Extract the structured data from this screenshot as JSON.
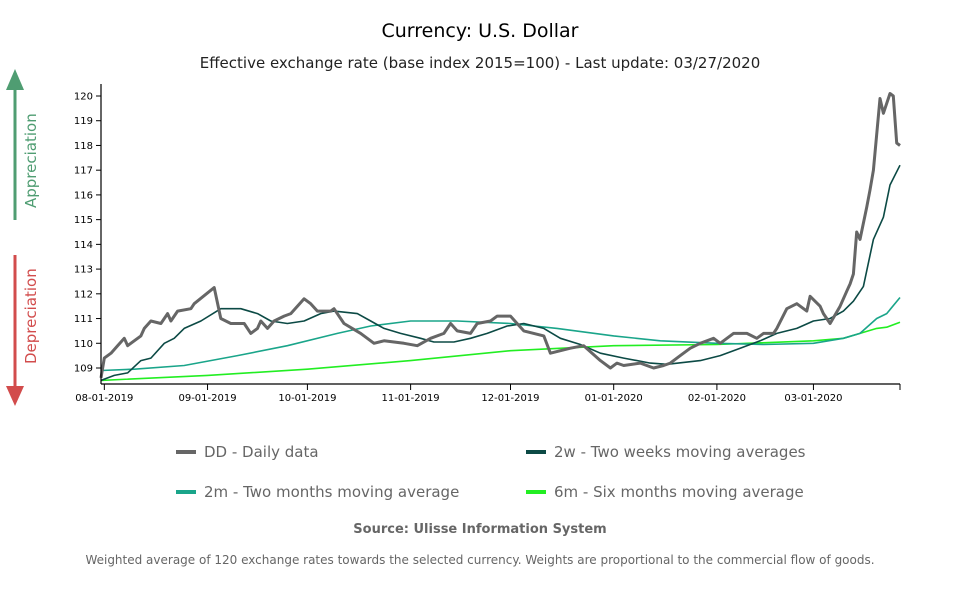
{
  "header": {
    "title": "Currency: U.S. Dollar",
    "subtitle": "Effective exchange rate (base index 2015=100) - Last update: 03/27/2020"
  },
  "side_labels": {
    "appreciation": "Appreciation",
    "depreciation": "Depreciation",
    "appreciation_color": "#4f9d72",
    "depreciation_color": "#d24c4c"
  },
  "legend": [
    {
      "label": "DD - Daily data",
      "color": "#666666"
    },
    {
      "label": "2w - Two weeks moving averages",
      "color": "#0c4a45"
    },
    {
      "label": "2m - Two months moving average",
      "color": "#1aa58a"
    },
    {
      "label": "6m - Six months moving average",
      "color": "#22ee22"
    }
  ],
  "footer": {
    "source": "Source: Ulisse Information System",
    "note": "Weighted average of 120 exchange rates towards the selected currency. Weights are proportional to the commercial flow of goods."
  },
  "chart_data": {
    "type": "line",
    "title": "Currency: U.S. Dollar",
    "subtitle": "Effective exchange rate (base index 2015=100) - Last update: 03/27/2020",
    "xlim": [
      "2019-07-31",
      "2020-03-27"
    ],
    "ylim": [
      108.3,
      120.4
    ],
    "x_ticks": [
      "08-01-2019",
      "09-01-2019",
      "10-01-2019",
      "11-01-2019",
      "12-01-2019",
      "01-01-2020",
      "02-01-2020",
      "03-01-2020"
    ],
    "x_tick_dates": [
      "2019-08-01",
      "2019-09-01",
      "2019-10-01",
      "2019-11-01",
      "2019-12-01",
      "2020-01-01",
      "2020-02-01",
      "2020-03-01"
    ],
    "y_ticks": [
      109,
      110,
      111,
      112,
      113,
      114,
      115,
      116,
      117,
      118,
      119,
      120
    ],
    "grid": false,
    "legend_position": "bottom",
    "series": [
      {
        "name": "DD - Daily data",
        "color": "#666666",
        "width": 3,
        "points": [
          [
            "2019-07-31",
            108.6
          ],
          [
            "2019-08-01",
            109.4
          ],
          [
            "2019-08-03",
            109.6
          ],
          [
            "2019-08-05",
            109.9
          ],
          [
            "2019-08-07",
            110.2
          ],
          [
            "2019-08-08",
            109.9
          ],
          [
            "2019-08-12",
            110.3
          ],
          [
            "2019-08-13",
            110.6
          ],
          [
            "2019-08-15",
            110.9
          ],
          [
            "2019-08-18",
            110.8
          ],
          [
            "2019-08-20",
            111.2
          ],
          [
            "2019-08-21",
            110.9
          ],
          [
            "2019-08-23",
            111.3
          ],
          [
            "2019-08-27",
            111.4
          ],
          [
            "2019-08-28",
            111.6
          ],
          [
            "2019-09-03",
            112.25
          ],
          [
            "2019-09-05",
            111.0
          ],
          [
            "2019-09-08",
            110.8
          ],
          [
            "2019-09-12",
            110.8
          ],
          [
            "2019-09-14",
            110.4
          ],
          [
            "2019-09-16",
            110.6
          ],
          [
            "2019-09-17",
            110.9
          ],
          [
            "2019-09-19",
            110.6
          ],
          [
            "2019-09-21",
            110.9
          ],
          [
            "2019-09-24",
            111.1
          ],
          [
            "2019-09-26",
            111.2
          ],
          [
            "2019-09-30",
            111.8
          ],
          [
            "2019-10-02",
            111.6
          ],
          [
            "2019-10-04",
            111.3
          ],
          [
            "2019-10-08",
            111.3
          ],
          [
            "2019-10-09",
            111.4
          ],
          [
            "2019-10-12",
            110.8
          ],
          [
            "2019-10-17",
            110.4
          ],
          [
            "2019-10-21",
            110.0
          ],
          [
            "2019-10-24",
            110.1
          ],
          [
            "2019-10-30",
            110.0
          ],
          [
            "2019-11-03",
            109.9
          ],
          [
            "2019-11-07",
            110.2
          ],
          [
            "2019-11-11",
            110.4
          ],
          [
            "2019-11-13",
            110.8
          ],
          [
            "2019-11-15",
            110.5
          ],
          [
            "2019-11-19",
            110.4
          ],
          [
            "2019-11-21",
            110.8
          ],
          [
            "2019-11-25",
            110.9
          ],
          [
            "2019-11-27",
            111.1
          ],
          [
            "2019-12-01",
            111.1
          ],
          [
            "2019-12-03",
            110.8
          ],
          [
            "2019-12-05",
            110.5
          ],
          [
            "2019-12-08",
            110.4
          ],
          [
            "2019-12-11",
            110.3
          ],
          [
            "2019-12-13",
            109.6
          ],
          [
            "2019-12-16",
            109.7
          ],
          [
            "2019-12-19",
            109.8
          ],
          [
            "2019-12-23",
            109.9
          ],
          [
            "2019-12-28",
            109.3
          ],
          [
            "2019-12-31",
            109.0
          ],
          [
            "2020-01-02",
            109.2
          ],
          [
            "2020-01-04",
            109.1
          ],
          [
            "2020-01-09",
            109.2
          ],
          [
            "2020-01-13",
            109.0
          ],
          [
            "2020-01-16",
            109.1
          ],
          [
            "2020-01-18",
            109.2
          ],
          [
            "2020-01-21",
            109.5
          ],
          [
            "2020-01-24",
            109.8
          ],
          [
            "2020-01-27",
            110.0
          ],
          [
            "2020-01-31",
            110.2
          ],
          [
            "2020-02-02",
            110.0
          ],
          [
            "2020-02-06",
            110.4
          ],
          [
            "2020-02-10",
            110.4
          ],
          [
            "2020-02-13",
            110.2
          ],
          [
            "2020-02-15",
            110.4
          ],
          [
            "2020-02-18",
            110.4
          ],
          [
            "2020-02-19",
            110.6
          ],
          [
            "2020-02-22",
            111.4
          ],
          [
            "2020-02-25",
            111.6
          ],
          [
            "2020-02-28",
            111.3
          ],
          [
            "2020-02-29",
            111.9
          ],
          [
            "2020-03-03",
            111.5
          ],
          [
            "2020-03-04",
            111.2
          ],
          [
            "2020-03-06",
            110.8
          ],
          [
            "2020-03-09",
            111.5
          ],
          [
            "2020-03-11",
            112.1
          ],
          [
            "2020-03-12",
            112.4
          ],
          [
            "2020-03-13",
            112.8
          ],
          [
            "2020-03-14",
            114.5
          ],
          [
            "2020-03-15",
            114.2
          ],
          [
            "2020-03-17",
            115.5
          ],
          [
            "2020-03-18",
            116.2
          ],
          [
            "2020-03-19",
            117.0
          ],
          [
            "2020-03-21",
            119.9
          ],
          [
            "2020-03-22",
            119.3
          ],
          [
            "2020-03-24",
            120.1
          ],
          [
            "2020-03-25",
            120.0
          ],
          [
            "2020-03-26",
            118.1
          ],
          [
            "2020-03-27",
            118.0
          ]
        ]
      },
      {
        "name": "2w - Two weeks moving averages",
        "color": "#0c4a45",
        "width": 1.6,
        "points": [
          [
            "2019-07-31",
            108.5
          ],
          [
            "2019-08-04",
            108.7
          ],
          [
            "2019-08-08",
            108.8
          ],
          [
            "2019-08-12",
            109.3
          ],
          [
            "2019-08-15",
            109.4
          ],
          [
            "2019-08-19",
            110.0
          ],
          [
            "2019-08-22",
            110.2
          ],
          [
            "2019-08-25",
            110.6
          ],
          [
            "2019-08-30",
            110.9
          ],
          [
            "2019-09-05",
            111.4
          ],
          [
            "2019-09-11",
            111.4
          ],
          [
            "2019-09-16",
            111.2
          ],
          [
            "2019-09-20",
            110.9
          ],
          [
            "2019-09-25",
            110.8
          ],
          [
            "2019-09-30",
            110.9
          ],
          [
            "2019-10-05",
            111.2
          ],
          [
            "2019-10-09",
            111.3
          ],
          [
            "2019-10-16",
            111.2
          ],
          [
            "2019-10-20",
            110.9
          ],
          [
            "2019-10-24",
            110.6
          ],
          [
            "2019-10-29",
            110.4
          ],
          [
            "2019-11-04",
            110.2
          ],
          [
            "2019-11-08",
            110.05
          ],
          [
            "2019-11-14",
            110.05
          ],
          [
            "2019-11-19",
            110.2
          ],
          [
            "2019-11-24",
            110.4
          ],
          [
            "2019-11-30",
            110.7
          ],
          [
            "2019-12-05",
            110.8
          ],
          [
            "2019-12-11",
            110.6
          ],
          [
            "2019-12-16",
            110.2
          ],
          [
            "2019-12-22",
            109.95
          ],
          [
            "2019-12-28",
            109.6
          ],
          [
            "2020-01-04",
            109.4
          ],
          [
            "2020-01-12",
            109.2
          ],
          [
            "2020-01-17",
            109.15
          ],
          [
            "2020-01-27",
            109.3
          ],
          [
            "2020-02-02",
            109.5
          ],
          [
            "2020-02-08",
            109.8
          ],
          [
            "2020-02-14",
            110.1
          ],
          [
            "2020-02-19",
            110.4
          ],
          [
            "2020-02-25",
            110.6
          ],
          [
            "2020-03-01",
            110.9
          ],
          [
            "2020-03-06",
            111.0
          ],
          [
            "2020-03-10",
            111.3
          ],
          [
            "2020-03-13",
            111.7
          ],
          [
            "2020-03-16",
            112.3
          ],
          [
            "2020-03-19",
            114.2
          ],
          [
            "2020-03-22",
            115.1
          ],
          [
            "2020-03-24",
            116.4
          ],
          [
            "2020-03-27",
            117.2
          ]
        ]
      },
      {
        "name": "2m - Two months moving average",
        "color": "#1aa58a",
        "width": 1.6,
        "points": [
          [
            "2019-07-31",
            108.9
          ],
          [
            "2019-08-10",
            108.95
          ],
          [
            "2019-08-25",
            109.1
          ],
          [
            "2019-09-10",
            109.5
          ],
          [
            "2019-09-25",
            109.9
          ],
          [
            "2019-10-10",
            110.4
          ],
          [
            "2019-10-20",
            110.7
          ],
          [
            "2019-11-01",
            110.9
          ],
          [
            "2019-11-15",
            110.9
          ],
          [
            "2019-12-01",
            110.8
          ],
          [
            "2019-12-15",
            110.6
          ],
          [
            "2020-01-01",
            110.3
          ],
          [
            "2020-01-15",
            110.1
          ],
          [
            "2020-02-01",
            110.0
          ],
          [
            "2020-02-15",
            109.95
          ],
          [
            "2020-03-01",
            110.0
          ],
          [
            "2020-03-10",
            110.2
          ],
          [
            "2020-03-15",
            110.4
          ],
          [
            "2020-03-20",
            111.0
          ],
          [
            "2020-03-23",
            111.2
          ],
          [
            "2020-03-27",
            111.85
          ]
        ]
      },
      {
        "name": "6m - Six months moving average",
        "color": "#22ee22",
        "width": 1.6,
        "points": [
          [
            "2019-07-31",
            108.5
          ],
          [
            "2019-09-01",
            108.7
          ],
          [
            "2019-10-01",
            108.95
          ],
          [
            "2019-11-01",
            109.3
          ],
          [
            "2019-12-01",
            109.7
          ],
          [
            "2020-01-01",
            109.9
          ],
          [
            "2020-02-01",
            109.95
          ],
          [
            "2020-03-01",
            110.1
          ],
          [
            "2020-03-10",
            110.2
          ],
          [
            "2020-03-15",
            110.4
          ],
          [
            "2020-03-20",
            110.6
          ],
          [
            "2020-03-23",
            110.65
          ],
          [
            "2020-03-27",
            110.85
          ]
        ]
      }
    ]
  }
}
